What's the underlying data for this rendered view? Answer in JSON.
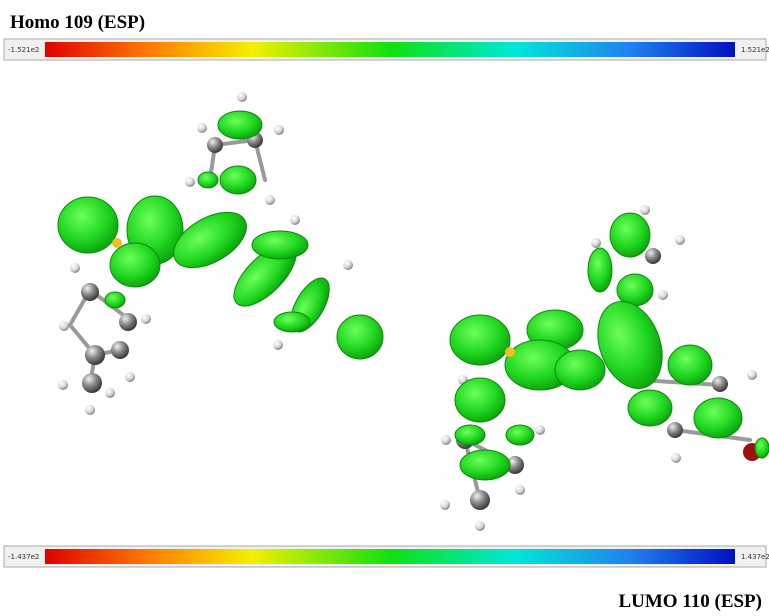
{
  "top": {
    "title": "Homo 109 (ESP)",
    "scale_min": "-1.521e2",
    "scale_max": "1.521e2"
  },
  "bottom": {
    "title": "LUMO 110 (ESP)",
    "scale_min": "-1.437e2",
    "scale_max": "1.437e2"
  }
}
